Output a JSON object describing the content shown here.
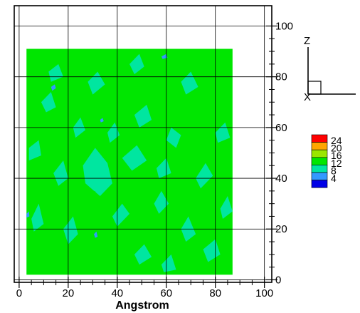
{
  "chart_data": {
    "type": "heatmap",
    "xlabel": "Angstrom",
    "ylabel": "",
    "xlim": [
      -2,
      103
    ],
    "ylim": [
      -1,
      108
    ],
    "x_ticks": [
      0,
      20,
      40,
      60,
      80,
      100
    ],
    "y_ticks": [
      0,
      20,
      40,
      60,
      80,
      100
    ],
    "grid": true,
    "field_extent": {
      "x": [
        3,
        87
      ],
      "y": [
        2,
        91
      ]
    },
    "dominant_level": 12,
    "legend": {
      "placement": "right",
      "levels": [
        {
          "value": 24,
          "color": "#ff0000"
        },
        {
          "value": 20,
          "color": "#ffa500"
        },
        {
          "value": 16,
          "color": "#9ae600"
        },
        {
          "value": 12,
          "color": "#00e600"
        },
        {
          "value": 8,
          "color": "#00e6a0"
        },
        {
          "value": 4,
          "color": "#3399ff"
        },
        {
          "value": "",
          "color": "#0000e6"
        }
      ]
    },
    "patches": [
      {
        "level": 8,
        "points": [
          [
            26,
            45
          ],
          [
            31,
            52
          ],
          [
            36,
            46
          ],
          [
            38,
            38
          ],
          [
            33,
            33
          ],
          [
            27,
            38
          ]
        ]
      },
      {
        "level": 8,
        "points": [
          [
            42,
            48
          ],
          [
            48,
            53
          ],
          [
            52,
            47
          ],
          [
            46,
            43
          ]
        ]
      },
      {
        "level": 8,
        "points": [
          [
            47,
            65
          ],
          [
            52,
            69
          ],
          [
            54,
            63
          ],
          [
            49,
            60
          ]
        ]
      },
      {
        "level": 8,
        "points": [
          [
            18,
            20
          ],
          [
            22,
            25
          ],
          [
            24,
            18
          ],
          [
            20,
            14
          ]
        ]
      },
      {
        "level": 8,
        "points": [
          [
            66,
            78
          ],
          [
            70,
            82
          ],
          [
            73,
            76
          ],
          [
            68,
            73
          ]
        ]
      },
      {
        "level": 8,
        "points": [
          [
            72,
            40
          ],
          [
            76,
            46
          ],
          [
            79,
            41
          ],
          [
            74,
            36
          ]
        ]
      },
      {
        "level": 8,
        "points": [
          [
            62,
            60
          ],
          [
            66,
            57
          ],
          [
            64,
            52
          ],
          [
            60,
            55
          ]
        ]
      },
      {
        "level": 8,
        "points": [
          [
            9,
            70
          ],
          [
            13,
            74
          ],
          [
            15,
            68
          ],
          [
            11,
            66
          ]
        ]
      },
      {
        "level": 8,
        "points": [
          [
            38,
            25
          ],
          [
            42,
            30
          ],
          [
            45,
            26
          ],
          [
            40,
            21
          ]
        ]
      },
      {
        "level": 8,
        "points": [
          [
            75,
            12
          ],
          [
            80,
            16
          ],
          [
            82,
            10
          ],
          [
            77,
            7
          ]
        ]
      },
      {
        "level": 8,
        "points": [
          [
            55,
            30
          ],
          [
            58,
            35
          ],
          [
            61,
            30
          ],
          [
            57,
            26
          ]
        ]
      },
      {
        "level": 8,
        "points": [
          [
            28,
            78
          ],
          [
            32,
            82
          ],
          [
            35,
            77
          ],
          [
            30,
            73
          ]
        ]
      },
      {
        "level": 8,
        "points": [
          [
            4,
            52
          ],
          [
            8,
            55
          ],
          [
            9,
            49
          ],
          [
            4,
            47
          ]
        ]
      },
      {
        "level": 8,
        "points": [
          [
            12,
            82
          ],
          [
            16,
            85
          ],
          [
            18,
            80
          ],
          [
            13,
            78
          ]
        ]
      },
      {
        "level": 8,
        "points": [
          [
            47,
            10
          ],
          [
            51,
            14
          ],
          [
            54,
            9
          ],
          [
            49,
            6
          ]
        ]
      },
      {
        "level": 8,
        "points": [
          [
            80,
            58
          ],
          [
            84,
            62
          ],
          [
            86,
            56
          ],
          [
            81,
            54
          ]
        ]
      },
      {
        "level": 8,
        "points": [
          [
            56,
            44
          ],
          [
            60,
            48
          ],
          [
            62,
            42
          ],
          [
            57,
            40
          ]
        ]
      },
      {
        "level": 8,
        "points": [
          [
            22,
            60
          ],
          [
            25,
            64
          ],
          [
            27,
            59
          ],
          [
            23,
            56
          ]
        ]
      },
      {
        "level": 8,
        "points": [
          [
            5,
            24
          ],
          [
            8,
            30
          ],
          [
            10,
            22
          ],
          [
            6,
            19
          ]
        ]
      },
      {
        "level": 8,
        "points": [
          [
            36,
            58
          ],
          [
            39,
            62
          ],
          [
            41,
            57
          ],
          [
            37,
            54
          ]
        ]
      },
      {
        "level": 8,
        "points": [
          [
            45,
            85
          ],
          [
            49,
            89
          ],
          [
            51,
            84
          ],
          [
            47,
            81
          ]
        ]
      },
      {
        "level": 8,
        "points": [
          [
            66,
            20
          ],
          [
            69,
            25
          ],
          [
            72,
            18
          ],
          [
            68,
            15
          ]
        ]
      },
      {
        "level": 8,
        "points": [
          [
            14,
            42
          ],
          [
            18,
            47
          ],
          [
            20,
            40
          ],
          [
            16,
            37
          ]
        ]
      },
      {
        "level": 8,
        "points": [
          [
            82,
            28
          ],
          [
            85,
            33
          ],
          [
            87,
            27
          ],
          [
            83,
            24
          ]
        ]
      },
      {
        "level": 8,
        "points": [
          [
            58,
            6
          ],
          [
            62,
            10
          ],
          [
            64,
            4
          ],
          [
            59,
            3
          ]
        ]
      },
      {
        "level": 12,
        "points": [
          [
            58,
            80
          ],
          [
            62,
            84
          ],
          [
            66,
            76
          ],
          [
            62,
            70
          ],
          [
            58,
            73
          ]
        ]
      },
      {
        "level": 12,
        "points": [
          [
            25,
            68
          ],
          [
            28,
            72
          ],
          [
            31,
            66
          ],
          [
            27,
            63
          ]
        ]
      },
      {
        "level": 12,
        "points": [
          [
            44,
            35
          ],
          [
            48,
            40
          ],
          [
            50,
            33
          ],
          [
            46,
            30
          ]
        ]
      },
      {
        "level": 12,
        "points": [
          [
            70,
            50
          ],
          [
            74,
            55
          ],
          [
            77,
            48
          ],
          [
            72,
            45
          ]
        ]
      },
      {
        "level": 12,
        "points": [
          [
            10,
            30
          ],
          [
            14,
            34
          ],
          [
            16,
            28
          ],
          [
            12,
            25
          ]
        ]
      },
      {
        "level": 12,
        "points": [
          [
            52,
            18
          ],
          [
            56,
            22
          ],
          [
            59,
            16
          ],
          [
            54,
            13
          ]
        ]
      },
      {
        "level": 12,
        "points": [
          [
            33,
            14
          ],
          [
            37,
            18
          ],
          [
            39,
            12
          ],
          [
            35,
            10
          ]
        ]
      },
      {
        "level": 12,
        "points": [
          [
            80,
            85
          ],
          [
            84,
            88
          ],
          [
            86,
            82
          ],
          [
            82,
            80
          ]
        ]
      },
      {
        "level": 12,
        "points": [
          [
            18,
            55
          ],
          [
            21,
            58
          ],
          [
            23,
            53
          ],
          [
            19,
            51
          ]
        ]
      },
      {
        "level": 12,
        "points": [
          [
            64,
            35
          ],
          [
            67,
            38
          ],
          [
            69,
            33
          ],
          [
            65,
            31
          ]
        ]
      },
      {
        "level": 12,
        "points": [
          [
            40,
            72
          ],
          [
            43,
            75
          ],
          [
            45,
            70
          ],
          [
            41,
            68
          ]
        ]
      },
      {
        "level": 12,
        "points": [
          [
            7,
            10
          ],
          [
            10,
            14
          ],
          [
            12,
            8
          ],
          [
            8,
            6
          ]
        ]
      },
      {
        "level": 12,
        "points": [
          [
            50,
            56
          ],
          [
            53,
            59
          ],
          [
            55,
            54
          ],
          [
            51,
            52
          ]
        ]
      },
      {
        "level": 12,
        "points": [
          [
            76,
            68
          ],
          [
            79,
            71
          ],
          [
            81,
            66
          ],
          [
            77,
            64
          ]
        ]
      },
      {
        "level": 12,
        "points": [
          [
            28,
            32
          ],
          [
            31,
            35
          ],
          [
            33,
            30
          ],
          [
            29,
            28
          ]
        ]
      },
      {
        "level": 4,
        "points": [
          [
            13,
            76
          ],
          [
            14.5,
            77
          ],
          [
            15,
            75.5
          ],
          [
            13.5,
            74.5
          ]
        ]
      },
      {
        "level": 4,
        "points": [
          [
            30.5,
            18
          ],
          [
            31.5,
            19
          ],
          [
            32,
            17
          ],
          [
            31,
            16.5
          ]
        ]
      },
      {
        "level": 4,
        "points": [
          [
            58,
            88
          ],
          [
            60,
            89
          ],
          [
            60.5,
            87.5
          ],
          [
            58.5,
            87
          ]
        ]
      },
      {
        "level": 4,
        "points": [
          [
            3,
            26
          ],
          [
            4,
            27
          ],
          [
            4.2,
            25
          ],
          [
            3,
            24.5
          ]
        ]
      },
      {
        "level": 4,
        "points": [
          [
            33,
            63
          ],
          [
            34,
            63.8
          ],
          [
            34.5,
            62.5
          ],
          [
            33.3,
            62
          ]
        ]
      }
    ]
  }
}
